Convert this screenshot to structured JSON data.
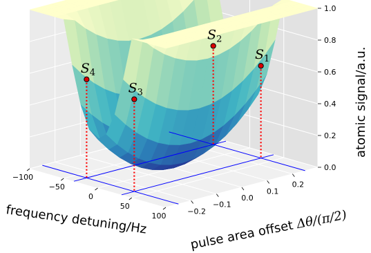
{
  "chart_data": {
    "type": "surface3d",
    "xlabel": "frequency detuning/Hz",
    "ylabel_main": "pulse area offset ",
    "ylabel_math": "Δθ/(π/2)",
    "zlabel": "atomic signal/a.u.",
    "xlim": [
      -100,
      100
    ],
    "ylim": [
      -0.3,
      0.3
    ],
    "zlim": [
      0.0,
      1.0
    ],
    "x_ticks": [
      -100,
      -50,
      0,
      50,
      100
    ],
    "x_tick_labels": [
      "−100",
      "−50",
      "0",
      "50",
      "100"
    ],
    "y_ticks": [
      -0.2,
      -0.1,
      0.0,
      0.1,
      0.2
    ],
    "y_tick_labels": [
      "−0.2",
      "−0.1",
      "0.0",
      "0.1",
      "0.2"
    ],
    "z_ticks": [
      0.0,
      0.2,
      0.4,
      0.6,
      0.8,
      1.0
    ],
    "z_tick_labels": [
      "0.0",
      "0.2",
      "0.4",
      "0.6",
      "0.8",
      "1.0"
    ],
    "colormap": [
      "#253494",
      "#2c7fb8",
      "#41b6c4",
      "#7fcdbb",
      "#c7e9b4",
      "#ffffcc"
    ],
    "line_color": "#0000ff",
    "marker_color": "#dd0000",
    "dropline_color": "#ff0000",
    "grid": true,
    "points": [
      {
        "name": "S",
        "sub": "1",
        "x": 35,
        "y": 0.25,
        "z": 0.58
      },
      {
        "name": "S",
        "sub": "2",
        "x": -35,
        "y": 0.25,
        "z": 0.62
      },
      {
        "name": "S",
        "sub": "3",
        "x": 35,
        "y": -0.25,
        "z": 0.58
      },
      {
        "name": "S",
        "sub": "4",
        "x": -35,
        "y": -0.25,
        "z": 0.62
      }
    ]
  }
}
